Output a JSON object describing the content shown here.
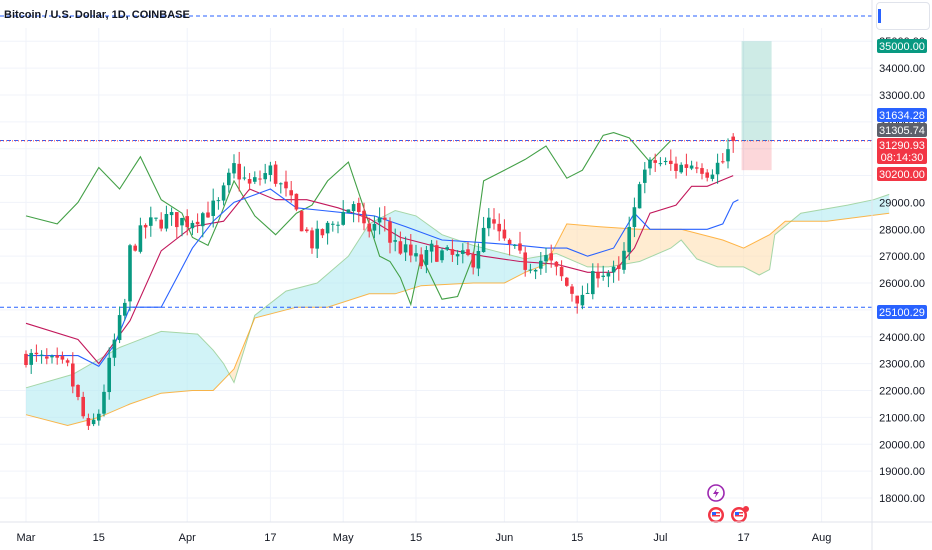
{
  "header": {
    "title": "Bitcoin / U.S. Dollar, 1D, COINBASE"
  },
  "colors": {
    "up": "#089981",
    "down": "#f23645",
    "conversion": "#2962ff",
    "base": "#c2185b",
    "lagging": "#43a047",
    "span_a": "#a5d6a7",
    "span_b": "#ff9800",
    "cloud_bull": "#b2ebf2",
    "cloud_bear": "#ffe0b2",
    "accent": "#2962ff"
  },
  "chart_data": {
    "type": "candlestick",
    "title": "Bitcoin / U.S. Dollar, 1D, COINBASE",
    "x_labels": [
      "Mar",
      "15",
      "Apr",
      "17",
      "May",
      "15",
      "Jun",
      "15",
      "Jul",
      "17",
      "Aug"
    ],
    "x_label_days": [
      0,
      14,
      31,
      47,
      61,
      75,
      92,
      106,
      122,
      138,
      153
    ],
    "y_ticks": [
      18000,
      19000,
      20000,
      21000,
      22000,
      23000,
      24000,
      25000,
      26000,
      27000,
      28000,
      29000,
      30000,
      31000,
      32000,
      33000,
      34000,
      35000
    ],
    "y_tick_labels": [
      "18000.00",
      "19000.00",
      "20000.00",
      "21000.00",
      "22000.00",
      "23000.00",
      "24000.00",
      "25000.00",
      "26000.00",
      "27000.00",
      "28000.00",
      "29000.00",
      "30000.00",
      "31000.00",
      "32000.00",
      "33000.00",
      "34000.00",
      "35000.00"
    ],
    "ylim": [
      17400,
      37000
    ],
    "anchors": [
      [
        0,
        23300
      ],
      [
        8,
        22800
      ],
      [
        12,
        20400
      ],
      [
        14,
        21200
      ],
      [
        17,
        23800
      ],
      [
        19,
        25200
      ],
      [
        20,
        27200
      ],
      [
        23,
        28100
      ],
      [
        27,
        28400
      ],
      [
        31,
        28300
      ],
      [
        37,
        28900
      ],
      [
        40,
        30300
      ],
      [
        43,
        29600
      ],
      [
        47,
        30200
      ],
      [
        50,
        29300
      ],
      [
        55,
        27500
      ],
      [
        59,
        28200
      ],
      [
        63,
        29000
      ],
      [
        65,
        27900
      ],
      [
        69,
        28400
      ],
      [
        70,
        27600
      ],
      [
        76,
        26700
      ],
      [
        78,
        27200
      ],
      [
        83,
        26900
      ],
      [
        86,
        26900
      ],
      [
        89,
        28300
      ],
      [
        91,
        27700
      ],
      [
        96,
        26700
      ],
      [
        100,
        26900
      ],
      [
        104,
        25900
      ],
      [
        107,
        25300
      ],
      [
        110,
        26500
      ],
      [
        114,
        26300
      ],
      [
        117,
        28600
      ],
      [
        118,
        30000
      ],
      [
        121,
        30500
      ],
      [
        125,
        30300
      ],
      [
        129,
        30500
      ],
      [
        131,
        30200
      ],
      [
        134,
        30500
      ],
      [
        136,
        31290
      ]
    ],
    "last_price": 31290.93,
    "countdown": "08:14:30",
    "horizontal_levels": [
      31305.74,
      25100.29
    ],
    "ichimoku": {
      "conversion": [
        [
          0,
          23300
        ],
        [
          10,
          23300
        ],
        [
          14,
          22900
        ],
        [
          17,
          23700
        ],
        [
          20,
          25100
        ],
        [
          26,
          25100
        ],
        [
          29,
          26200
        ],
        [
          32,
          27300
        ],
        [
          36,
          28300
        ],
        [
          40,
          29000
        ],
        [
          47,
          29500
        ],
        [
          52,
          28800
        ],
        [
          57,
          28700
        ],
        [
          62,
          28600
        ],
        [
          67,
          28500
        ],
        [
          73,
          28100
        ],
        [
          80,
          27600
        ],
        [
          88,
          27500
        ],
        [
          95,
          27400
        ],
        [
          100,
          27300
        ],
        [
          104,
          27300
        ],
        [
          108,
          27000
        ],
        [
          113,
          27300
        ],
        [
          117,
          28600
        ],
        [
          120,
          28000
        ],
        [
          125,
          28000
        ],
        [
          131,
          28000
        ],
        [
          134,
          28200
        ],
        [
          136,
          29000
        ],
        [
          137,
          29100
        ]
      ],
      "base": [
        [
          0,
          24500
        ],
        [
          10,
          23900
        ],
        [
          14,
          23000
        ],
        [
          20,
          24600
        ],
        [
          26,
          27200
        ],
        [
          32,
          28100
        ],
        [
          38,
          28300
        ],
        [
          43,
          29500
        ],
        [
          48,
          29100
        ],
        [
          54,
          29100
        ],
        [
          60,
          28800
        ],
        [
          66,
          28400
        ],
        [
          72,
          27700
        ],
        [
          80,
          27300
        ],
        [
          88,
          27000
        ],
        [
          95,
          26800
        ],
        [
          102,
          26700
        ],
        [
          108,
          26400
        ],
        [
          113,
          26400
        ],
        [
          117,
          27300
        ],
        [
          120,
          28600
        ],
        [
          125,
          28900
        ],
        [
          128,
          29600
        ],
        [
          131,
          29600
        ],
        [
          136,
          30000
        ]
      ],
      "lagging": [
        [
          0,
          28500
        ],
        [
          6,
          28200
        ],
        [
          10,
          29000
        ],
        [
          14,
          30300
        ],
        [
          18,
          29500
        ],
        [
          22,
          30700
        ],
        [
          26,
          29100
        ],
        [
          30,
          28600
        ],
        [
          32,
          27700
        ],
        [
          35,
          27400
        ],
        [
          37,
          28300
        ],
        [
          40,
          29800
        ],
        [
          44,
          28500
        ],
        [
          48,
          27800
        ],
        [
          52,
          28600
        ],
        [
          55,
          28900
        ],
        [
          58,
          29800
        ],
        [
          62,
          30500
        ],
        [
          66,
          28200
        ],
        [
          68,
          27000
        ],
        [
          70,
          26800
        ],
        [
          72,
          26200
        ],
        [
          74,
          25200
        ],
        [
          76,
          27000
        ],
        [
          80,
          25400
        ],
        [
          83,
          25500
        ],
        [
          86,
          27000
        ],
        [
          88,
          29800
        ],
        [
          92,
          30200
        ],
        [
          96,
          30600
        ],
        [
          100,
          31100
        ],
        [
          104,
          29900
        ],
        [
          107,
          30200
        ],
        [
          111,
          31500
        ],
        [
          113,
          31600
        ],
        [
          116,
          31400
        ],
        [
          120,
          30500
        ],
        [
          124,
          31300
        ]
      ],
      "span_a": [
        [
          0,
          22100
        ],
        [
          9,
          22600
        ],
        [
          18,
          23600
        ],
        [
          26,
          24200
        ],
        [
          33,
          24100
        ],
        [
          36,
          23500
        ],
        [
          38,
          23000
        ],
        [
          40,
          22300
        ],
        [
          44,
          24800
        ],
        [
          50,
          25700
        ],
        [
          56,
          26000
        ],
        [
          62,
          27000
        ],
        [
          66,
          28200
        ],
        [
          71,
          28700
        ],
        [
          75,
          28500
        ],
        [
          80,
          27800
        ],
        [
          86,
          27400
        ],
        [
          90,
          27200
        ],
        [
          96,
          26900
        ],
        [
          102,
          27100
        ],
        [
          108,
          26600
        ],
        [
          112,
          26600
        ],
        [
          118,
          26800
        ],
        [
          124,
          27300
        ],
        [
          126,
          27600
        ],
        [
          129,
          26900
        ],
        [
          133,
          26600
        ],
        [
          138,
          26600
        ],
        [
          141,
          26300
        ],
        [
          143,
          26500
        ],
        [
          144,
          27800
        ],
        [
          149,
          28600
        ],
        [
          158,
          28900
        ],
        [
          163,
          29100
        ],
        [
          166,
          29300
        ]
      ],
      "span_b": [
        [
          0,
          21100
        ],
        [
          8,
          20700
        ],
        [
          14,
          21000
        ],
        [
          20,
          21500
        ],
        [
          26,
          21900
        ],
        [
          32,
          22000
        ],
        [
          36,
          22000
        ],
        [
          40,
          22800
        ],
        [
          44,
          24700
        ],
        [
          52,
          25100
        ],
        [
          58,
          25100
        ],
        [
          66,
          25600
        ],
        [
          71,
          25600
        ],
        [
          76,
          25900
        ],
        [
          86,
          26000
        ],
        [
          92,
          26000
        ],
        [
          96,
          26400
        ],
        [
          100,
          26700
        ],
        [
          104,
          28200
        ],
        [
          110,
          28100
        ],
        [
          118,
          28000
        ],
        [
          126,
          28000
        ],
        [
          134,
          27600
        ],
        [
          138,
          27300
        ],
        [
          143,
          27800
        ],
        [
          146,
          28300
        ],
        [
          154,
          28300
        ],
        [
          166,
          28600
        ]
      ],
      "span_start_day": 0
    },
    "position_tool": {
      "entry": 31290.93,
      "target": 35000.0,
      "stop": 30200.0,
      "start_day": 138,
      "end_day": 143
    }
  },
  "price_labels": {
    "target": "35000.00",
    "resistance": "31634.28",
    "prior_close": "31305.74",
    "last": "31290.93",
    "countdown": "08:14:30",
    "stop": "30200.00",
    "support": "25100.29"
  }
}
